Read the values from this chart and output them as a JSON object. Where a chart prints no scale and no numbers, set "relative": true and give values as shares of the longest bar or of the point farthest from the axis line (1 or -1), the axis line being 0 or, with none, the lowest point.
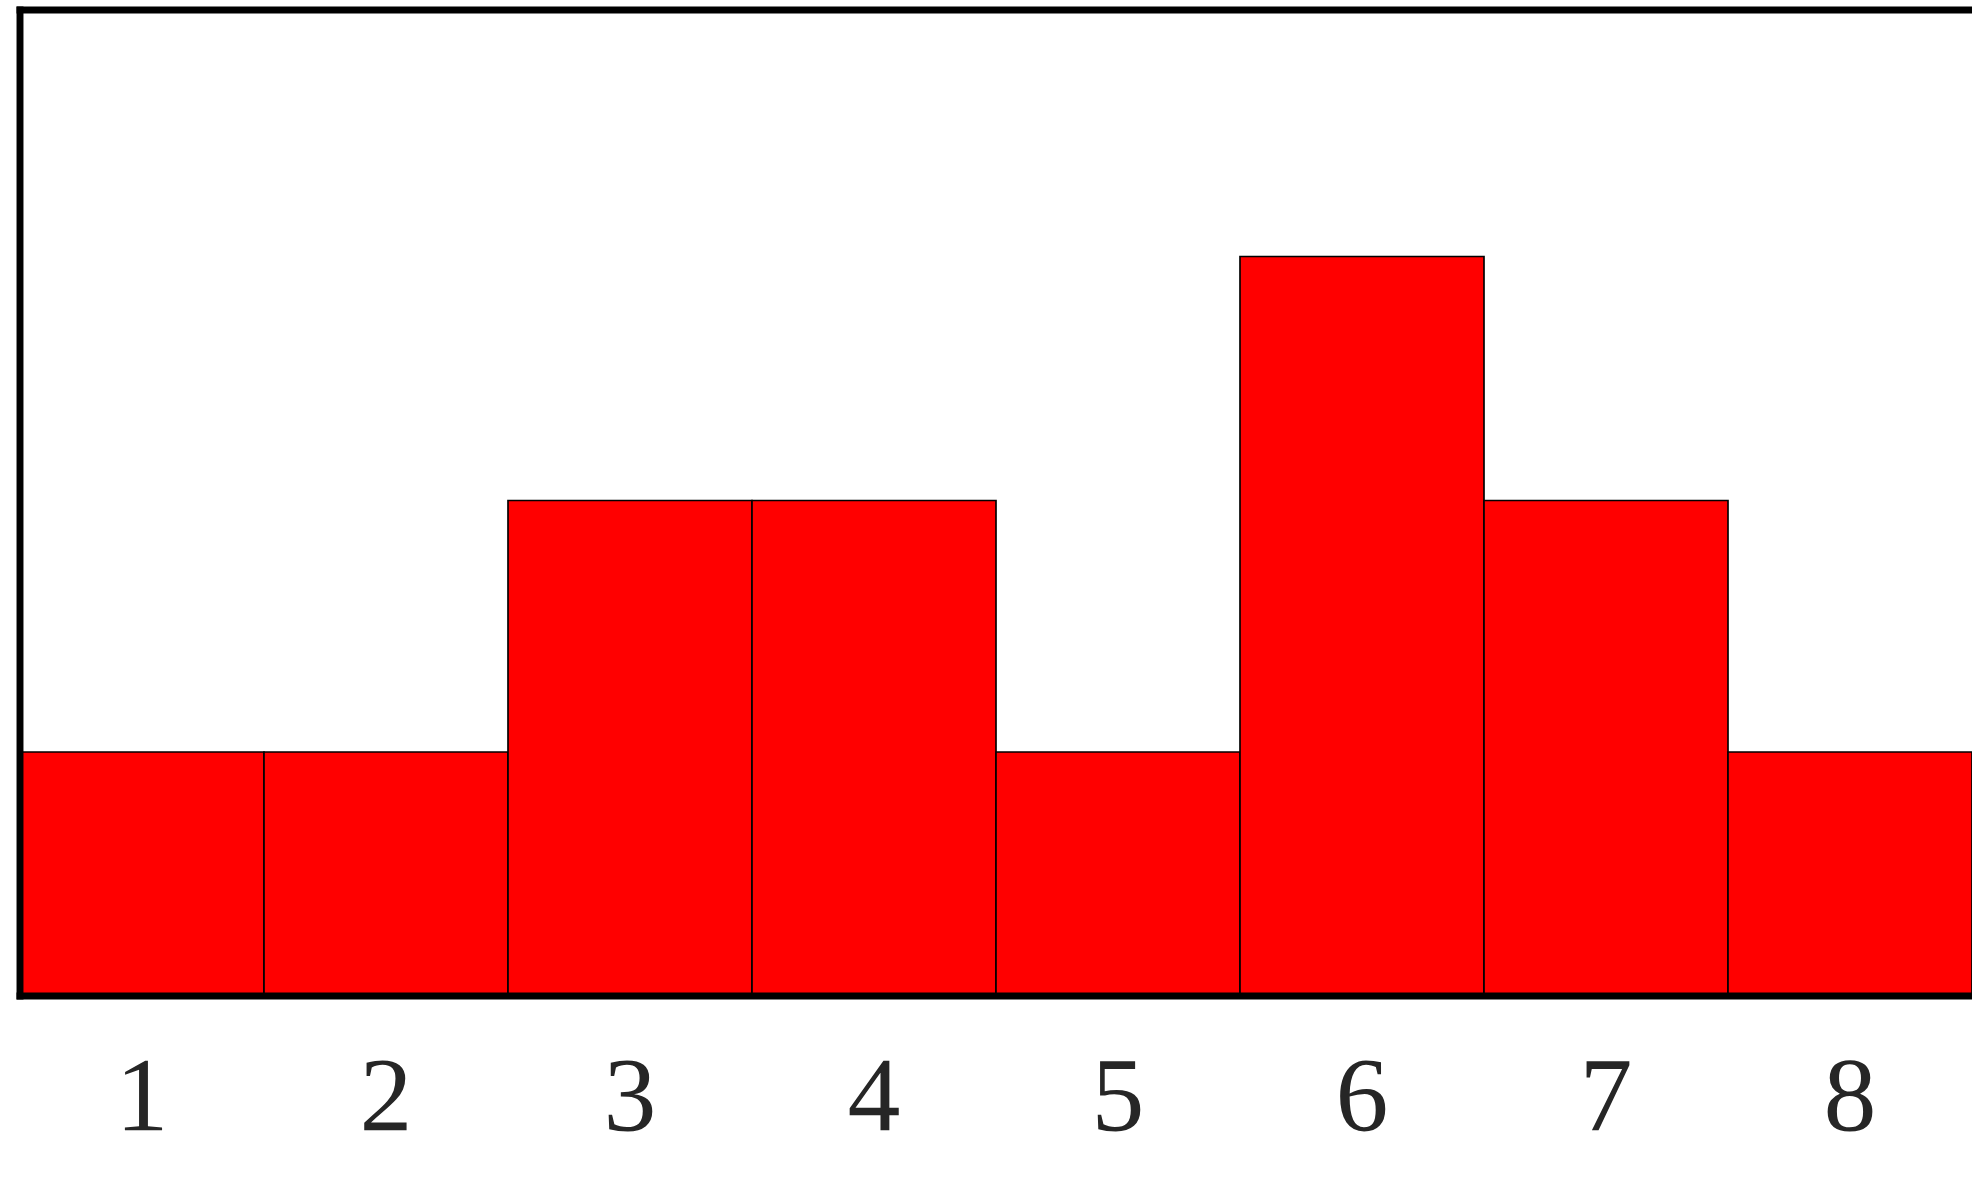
{
  "chart_data": {
    "type": "bar",
    "relative": true,
    "categories": [
      "1",
      "2",
      "3",
      "4",
      "5",
      "6",
      "7",
      "8"
    ],
    "series": [
      {
        "color": "#ff0000",
        "values": [
          0.33,
          0.33,
          0.67,
          0.67,
          0.33,
          1,
          0.67,
          0.33
        ]
      }
    ]
  }
}
